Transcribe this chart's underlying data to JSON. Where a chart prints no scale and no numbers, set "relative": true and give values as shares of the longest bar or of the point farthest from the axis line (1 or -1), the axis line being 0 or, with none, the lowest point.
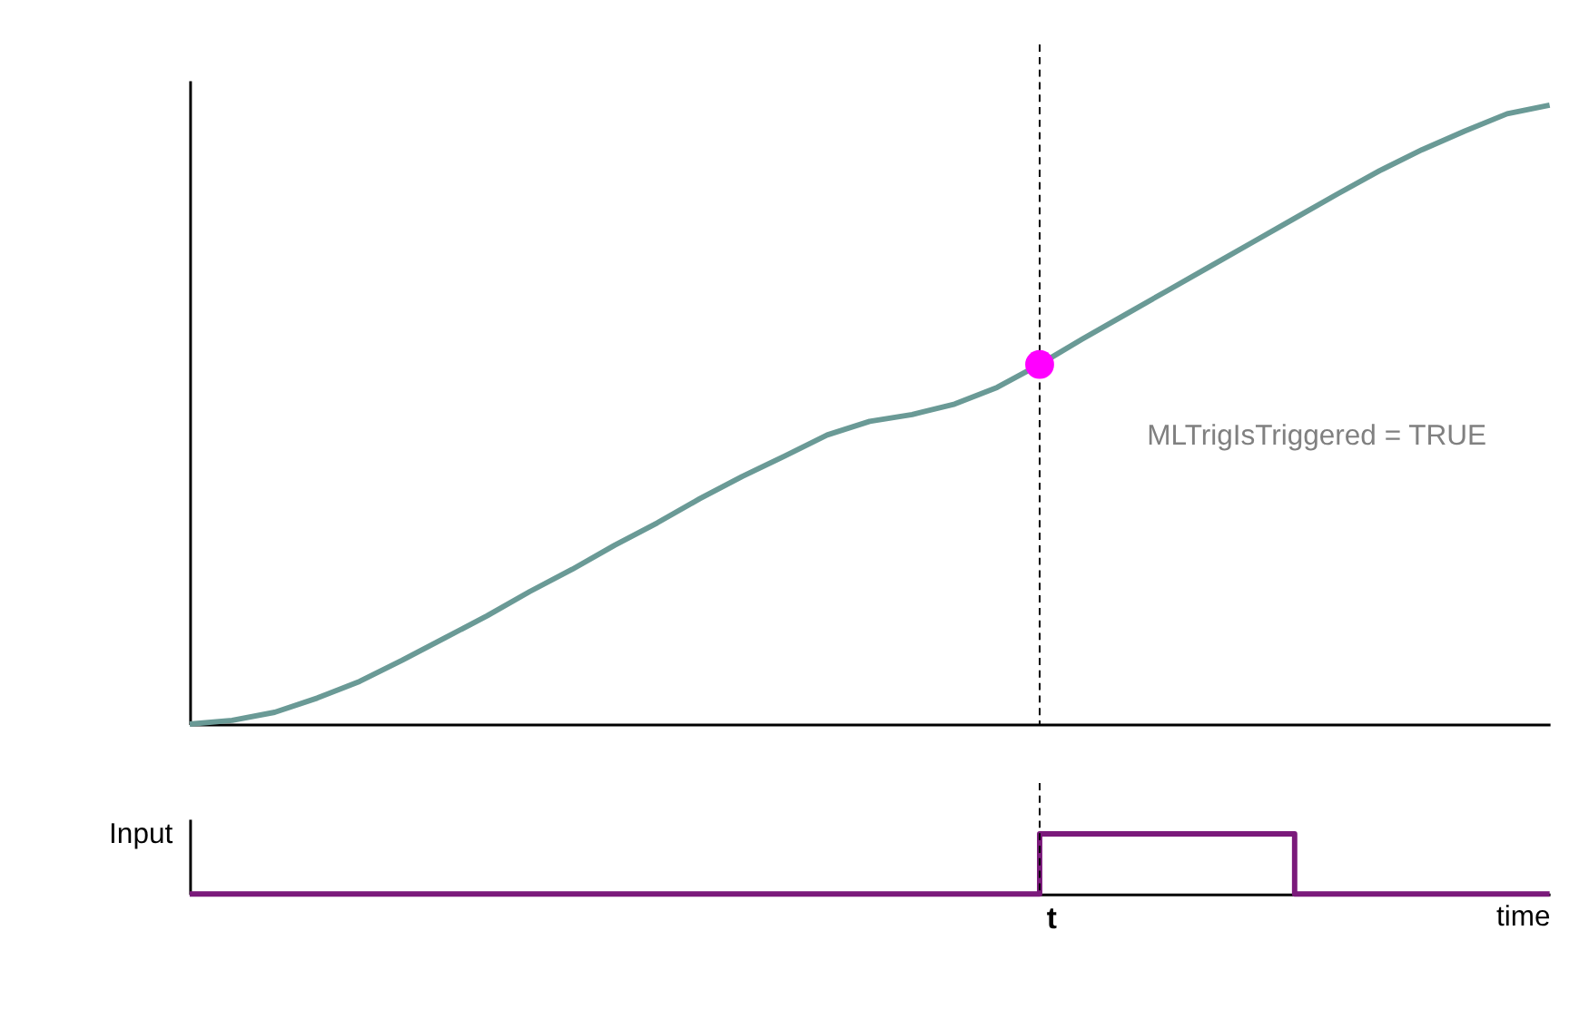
{
  "chart_data": [
    {
      "type": "line",
      "relative": true,
      "grid": false,
      "categories": [
        null,
        null,
        null,
        null,
        null,
        null,
        null,
        null,
        null,
        null,
        null,
        null,
        null,
        null,
        null,
        null,
        null,
        null,
        null,
        null,
        null,
        null,
        null,
        null,
        null,
        null,
        null,
        null,
        null,
        null,
        null,
        null,
        null
      ],
      "series": [
        {
          "color": "#6a9a96",
          "values": [
            0,
            0.006,
            0.019,
            0.042,
            0.069,
            0.103,
            0.139,
            0.175,
            0.214,
            0.25,
            0.289,
            0.325,
            0.364,
            0.4,
            0.433,
            0.467,
            0.489,
            0.5,
            0.517,
            0.544,
            0.581,
            0.622,
            0.661,
            0.7,
            0.739,
            0.778,
            0.817,
            0.856,
            0.894,
            0.928,
            0.958,
            0.986,
            1.0
          ]
        }
      ],
      "annotations": [
        "MLTrigIsTriggered = TRUE"
      ]
    },
    {
      "type": "step",
      "relative": true,
      "grid": false,
      "ylabel": "Input",
      "xlabel": "time",
      "categories": [
        null,
        null,
        null,
        null,
        null,
        null,
        null,
        null,
        null,
        null,
        null,
        null,
        null,
        null,
        null,
        null,
        null,
        null,
        null,
        null,
        null,
        null,
        null,
        null,
        null,
        null,
        null,
        null,
        null,
        null,
        null,
        null,
        null,
        null,
        null,
        null,
        null,
        null,
        null,
        null,
        null,
        null,
        null,
        null,
        null,
        null,
        null,
        null,
        null,
        null,
        null,
        null,
        null,
        null,
        null,
        null,
        null,
        null,
        null,
        null,
        null,
        null,
        null,
        null,
        null
      ],
      "series": [
        {
          "color": "#7b1a7b",
          "values": [
            0,
            0,
            0,
            0,
            0,
            0,
            0,
            0,
            0,
            0,
            0,
            0,
            0,
            0,
            0,
            0,
            0,
            0,
            0,
            0,
            0,
            0,
            0,
            0,
            0,
            0,
            0,
            0,
            0,
            0,
            0,
            0,
            0,
            0,
            0,
            0,
            0,
            0,
            0,
            0,
            1,
            1,
            1,
            1,
            1,
            1,
            1,
            1,
            1,
            1,
            1,
            1,
            0,
            0,
            0,
            0,
            0,
            0,
            0,
            0,
            0,
            0,
            0,
            0,
            0
          ]
        }
      ],
      "annotations": [
        "t"
      ]
    }
  ]
}
